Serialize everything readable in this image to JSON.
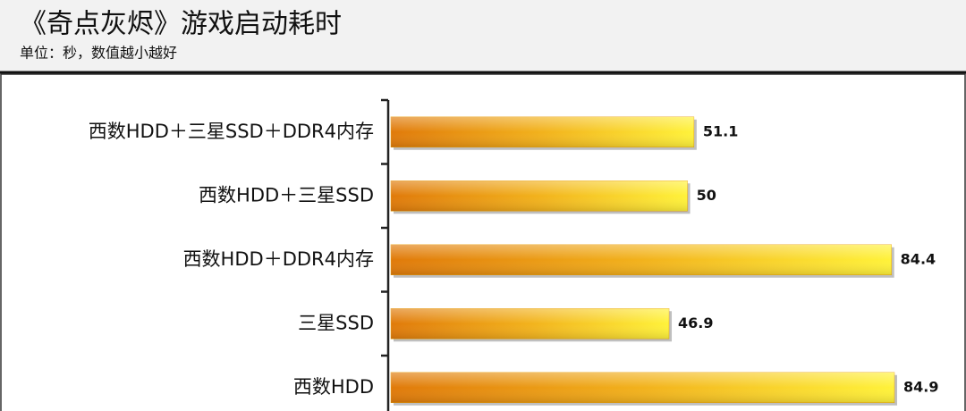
{
  "chart_data": {
    "type": "bar",
    "orientation": "horizontal",
    "title": "《奇点灰烬》游戏启动耗时",
    "subtitle": "单位：秒，数值越小越好",
    "categories": [
      "西数HDD＋三星SSD＋DDR4内存",
      "西数HDD＋三星SSD",
      "西数HDD＋DDR4内存",
      "三星SSD",
      "西数HDD"
    ],
    "values": [
      51.1,
      50,
      84.4,
      46.9,
      84.9
    ],
    "color": "#e8a010"
  }
}
